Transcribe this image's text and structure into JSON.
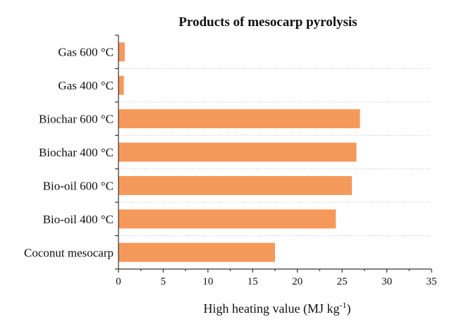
{
  "chart_data": {
    "type": "bar",
    "orientation": "horizontal",
    "title": "Products of mesocarp pyrolysis",
    "xlabel": "High heating value (MJ kg",
    "xlabel_superscript": "-1",
    "xlabel_suffix": ")",
    "ylabel": "",
    "categories": [
      "Gas 600 °C",
      "Gas 400 °C",
      "Biochar 600 °C",
      "Biochar 400 °C",
      "Bio-oil 600 °C",
      "Bio-oil 400 °C",
      "Coconut mesocarp"
    ],
    "values": [
      0.7,
      0.6,
      27.0,
      26.6,
      26.1,
      24.3,
      17.5
    ],
    "xlim": [
      0,
      35
    ],
    "xticks": [
      0,
      5,
      10,
      15,
      20,
      25,
      30,
      35
    ],
    "grid": true,
    "bar_color": "#F5995B"
  }
}
